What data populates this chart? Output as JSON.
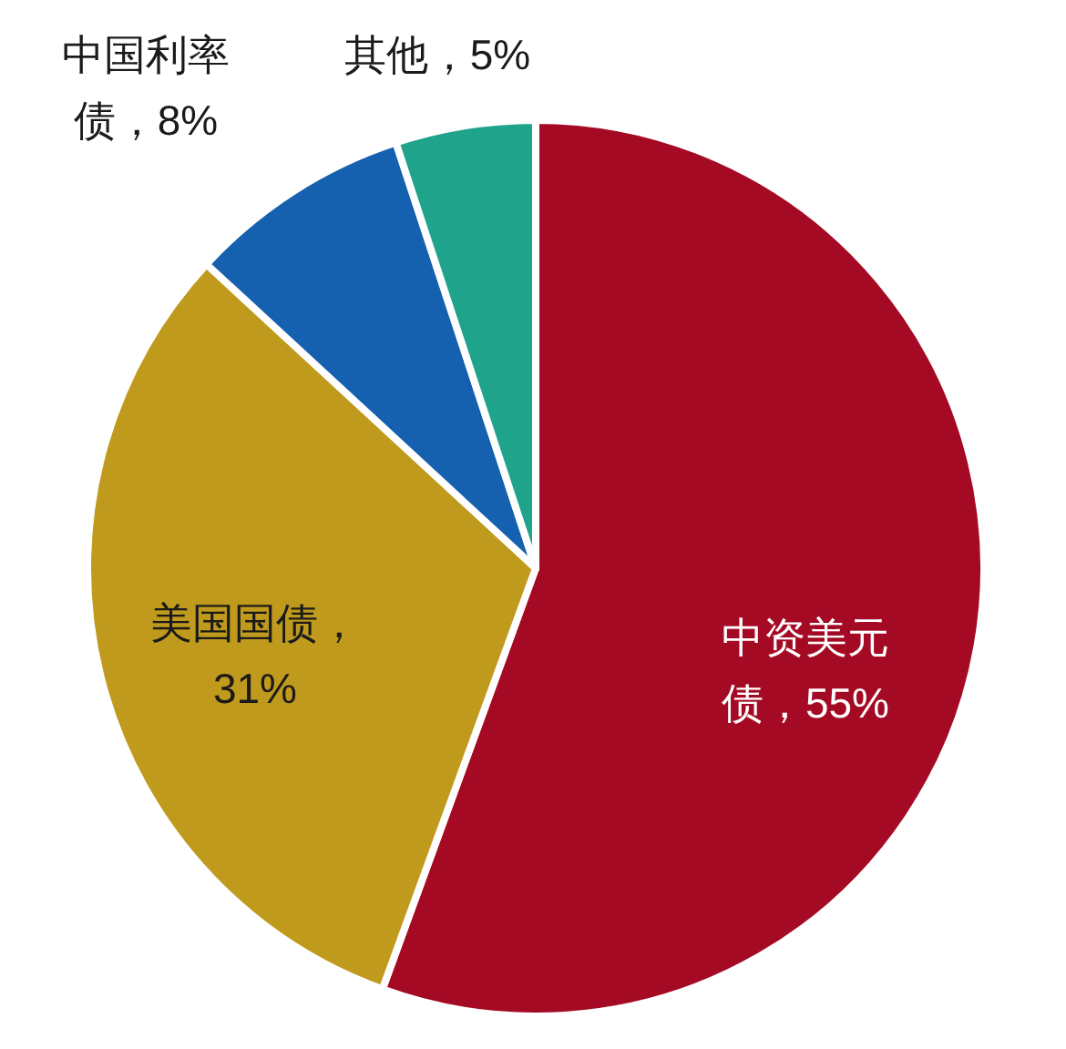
{
  "chart_data": {
    "type": "pie",
    "categories": [
      "中资美元债",
      "美国国债",
      "中国利率债",
      "其他"
    ],
    "values": [
      55,
      31,
      8,
      5
    ],
    "value_labels": [
      "，55%",
      "，31%",
      "，8%",
      "，5%"
    ],
    "colors": [
      "#a50a24",
      "#c09a1c",
      "#1660b0",
      "#1fa38a"
    ]
  }
}
